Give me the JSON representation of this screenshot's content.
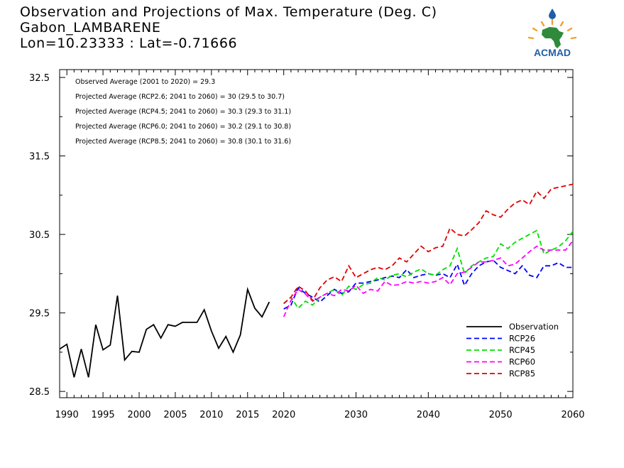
{
  "header": {
    "title": "Observation and Projections of Max. Temperature (Deg. C)",
    "station": "Gabon_LAMBARENE",
    "coords": "Lon=10.23333 : Lat=-0.71666"
  },
  "logo": {
    "text": "ACMAD",
    "colors": {
      "blue": "#1f5fa8",
      "gold": "#f0a22c",
      "green": "#2f8a3c"
    }
  },
  "annotations": [
    "Observed Average (2001 to 2020) = 29.3",
    "Projected Average (RCP2.6; 2041 to 2060) = 30 (29.5 to 30.7)",
    "Projected Average (RCP4.5; 2041 to 2060) = 30.3 (29.3 to 31.1)",
    "Projected Average (RCP6.0; 2041 to 2060) = 30.2 (29.1 to 30.8)",
    "Projected Average (RCP8.5; 2041 to 2060) = 30.8 (30.1 to 31.6)"
  ],
  "chart_data": {
    "type": "line",
    "title": "Observation and Projections of Max. Temperature (Deg. C)",
    "xlim": [
      1989,
      2060
    ],
    "ylim": [
      28.42,
      32.6
    ],
    "xticks": [
      1990,
      1995,
      2000,
      2005,
      2010,
      2015,
      2020,
      2030,
      2040,
      2050,
      2060
    ],
    "yticks": [
      28.5,
      29.5,
      30.5,
      31.5,
      32.5
    ],
    "ytick_labels": [
      "28.5",
      "29.5",
      "30.5",
      "31.5",
      "32.5"
    ],
    "grid": false,
    "legend_position": "bottom-right",
    "series": [
      {
        "name": "Observation",
        "color": "#000000",
        "dashed": false,
        "x": [
          1989,
          1990,
          1991,
          1992,
          1993,
          1994,
          1995,
          1996,
          1997,
          1998,
          1999,
          2000,
          2001,
          2002,
          2003,
          2004,
          2005,
          2006,
          2007,
          2008,
          2009,
          2010,
          2011,
          2012,
          2013,
          2014,
          2015,
          2016,
          2017,
          2018,
          2019
        ],
        "y": [
          29.04,
          29.1,
          28.68,
          29.04,
          28.68,
          29.35,
          29.03,
          29.09,
          29.72,
          28.9,
          29.01,
          29.0,
          29.29,
          29.35,
          29.18,
          29.35,
          29.33,
          29.38,
          29.38,
          29.38,
          29.54,
          29.27,
          29.05,
          29.2,
          29.0,
          29.22,
          29.8,
          29.56,
          29.45,
          29.64,
          null
        ]
      },
      {
        "name": "RCP26",
        "color": "#0000ff",
        "dashed": true,
        "x": [
          2020,
          2021,
          2022,
          2023,
          2024,
          2025,
          2026,
          2027,
          2028,
          2029,
          2030,
          2031,
          2032,
          2033,
          2034,
          2035,
          2036,
          2037,
          2038,
          2039,
          2040,
          2041,
          2042,
          2043,
          2044,
          2045,
          2046,
          2047,
          2048,
          2049,
          2050,
          2051,
          2052,
          2053,
          2054,
          2055,
          2056,
          2057,
          2058,
          2059,
          2060
        ],
        "y": [
          29.55,
          29.6,
          29.82,
          29.75,
          29.7,
          29.64,
          29.72,
          29.8,
          29.75,
          29.77,
          29.88,
          29.88,
          29.9,
          29.92,
          29.95,
          29.97,
          29.95,
          30.05,
          29.95,
          29.98,
          30.0,
          29.98,
          30.0,
          29.95,
          30.12,
          29.85,
          30.0,
          30.1,
          30.15,
          30.17,
          30.08,
          30.04,
          30.0,
          30.1,
          29.98,
          29.95,
          30.1,
          30.1,
          30.14,
          30.08,
          30.08
        ]
      },
      {
        "name": "RCP45",
        "color": "#00e000",
        "dashed": true,
        "x": [
          2020,
          2021,
          2022,
          2023,
          2024,
          2025,
          2026,
          2027,
          2028,
          2029,
          2030,
          2031,
          2032,
          2033,
          2034,
          2035,
          2036,
          2037,
          2038,
          2039,
          2040,
          2041,
          2042,
          2043,
          2044,
          2045,
          2046,
          2047,
          2048,
          2049,
          2050,
          2051,
          2052,
          2053,
          2054,
          2055,
          2056,
          2057,
          2058,
          2059,
          2060
        ],
        "y": [
          29.62,
          29.7,
          29.56,
          29.65,
          29.6,
          29.7,
          29.75,
          29.8,
          29.72,
          29.84,
          29.8,
          29.86,
          29.88,
          29.95,
          29.92,
          29.98,
          30.0,
          29.96,
          30.02,
          30.06,
          30.0,
          29.98,
          30.05,
          30.1,
          30.32,
          30.0,
          30.1,
          30.15,
          30.2,
          30.22,
          30.38,
          30.32,
          30.4,
          30.45,
          30.5,
          30.55,
          30.25,
          30.3,
          30.34,
          30.42,
          30.54
        ]
      },
      {
        "name": "RCP60",
        "color": "#ff00ff",
        "dashed": true,
        "x": [
          2020,
          2021,
          2022,
          2023,
          2024,
          2025,
          2026,
          2027,
          2028,
          2029,
          2030,
          2031,
          2032,
          2033,
          2034,
          2035,
          2036,
          2037,
          2038,
          2039,
          2040,
          2041,
          2042,
          2043,
          2044,
          2045,
          2046,
          2047,
          2048,
          2049,
          2050,
          2051,
          2052,
          2053,
          2054,
          2055,
          2056,
          2057,
          2058,
          2059,
          2060
        ],
        "y": [
          29.45,
          29.66,
          29.8,
          29.74,
          29.65,
          29.7,
          29.75,
          29.72,
          29.8,
          29.78,
          29.85,
          29.75,
          29.8,
          29.78,
          29.9,
          29.85,
          29.86,
          29.9,
          29.88,
          29.9,
          29.88,
          29.9,
          29.95,
          29.86,
          30.0,
          30.02,
          30.08,
          30.15,
          30.15,
          30.17,
          30.2,
          30.1,
          30.12,
          30.2,
          30.28,
          30.35,
          30.3,
          30.3,
          30.3,
          30.3,
          30.42
        ]
      },
      {
        "name": "RCP85",
        "color": "#e00000",
        "dashed": true,
        "x": [
          2020,
          2021,
          2022,
          2023,
          2024,
          2025,
          2026,
          2027,
          2028,
          2029,
          2030,
          2031,
          2032,
          2033,
          2034,
          2035,
          2036,
          2037,
          2038,
          2039,
          2040,
          2041,
          2042,
          2043,
          2044,
          2045,
          2046,
          2047,
          2048,
          2049,
          2050,
          2051,
          2052,
          2053,
          2054,
          2055,
          2056,
          2057,
          2058,
          2059,
          2060
        ],
        "y": [
          29.62,
          29.7,
          29.84,
          29.78,
          29.66,
          29.82,
          29.92,
          29.96,
          29.9,
          30.1,
          29.95,
          30.0,
          30.05,
          30.08,
          30.05,
          30.1,
          30.2,
          30.15,
          30.25,
          30.35,
          30.28,
          30.33,
          30.35,
          30.58,
          30.5,
          30.48,
          30.56,
          30.65,
          30.8,
          30.75,
          30.72,
          30.82,
          30.9,
          30.94,
          30.88,
          31.05,
          30.96,
          31.08,
          31.1,
          31.12,
          31.14
        ]
      }
    ]
  }
}
